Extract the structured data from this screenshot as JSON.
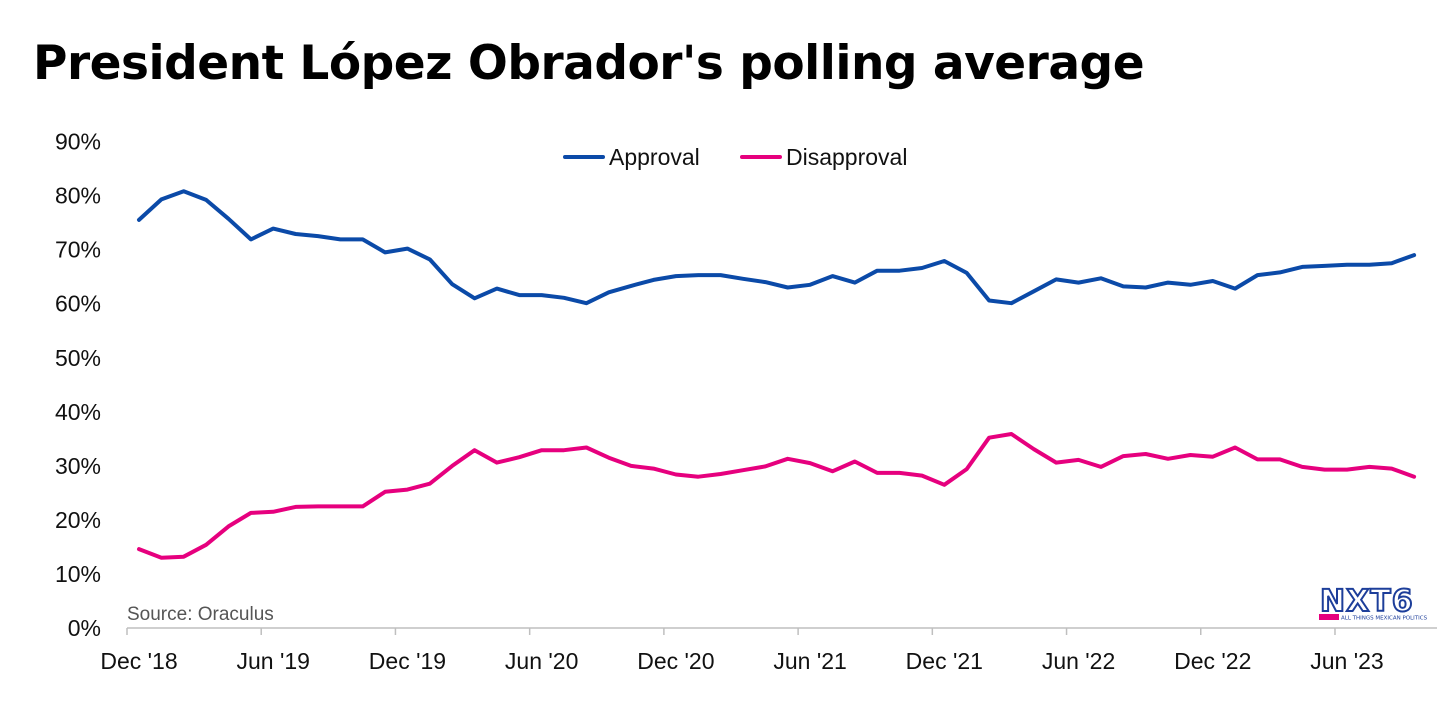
{
  "title": "President López Obrador's polling average",
  "source": "Source: Oraculus",
  "logo": {
    "text": "NXT6",
    "tagline": "ALL THINGS MEXICAN POLITICS",
    "accent": "#e6007e",
    "color": "#1d3e9a"
  },
  "chart_data": {
    "type": "line",
    "title": "President López Obrador's polling average",
    "xlabel": "",
    "ylabel": "",
    "ylim": [
      0,
      90
    ],
    "grid": false,
    "legend_position": "top-center",
    "y_ticks": [
      "0%",
      "10%",
      "20%",
      "30%",
      "40%",
      "50%",
      "60%",
      "70%",
      "80%",
      "90%"
    ],
    "x_ticks": [
      "Dec '18",
      "Jun '19",
      "Dec '19",
      "Jun '20",
      "Dec '20",
      "Jun '21",
      "Dec '21",
      "Jun '22",
      "Dec '22",
      "Jun '23"
    ],
    "x": [
      "Dec '18",
      "Jan '19",
      "Feb '19",
      "Mar '19",
      "Apr '19",
      "May '19",
      "Jun '19",
      "Jul '19",
      "Aug '19",
      "Sep '19",
      "Oct '19",
      "Nov '19",
      "Dec '19",
      "Jan '20",
      "Feb '20",
      "Mar '20",
      "Apr '20",
      "May '20",
      "Jun '20",
      "Jul '20",
      "Aug '20",
      "Sep '20",
      "Oct '20",
      "Nov '20",
      "Dec '20",
      "Jan '21",
      "Feb '21",
      "Mar '21",
      "Apr '21",
      "May '21",
      "Jun '21",
      "Jul '21",
      "Aug '21",
      "Sep '21",
      "Oct '21",
      "Nov '21",
      "Dec '21",
      "Jan '22",
      "Feb '22",
      "Mar '22",
      "Apr '22",
      "May '22",
      "Jun '22",
      "Jul '22",
      "Aug '22",
      "Sep '22",
      "Oct '22",
      "Nov '22",
      "Dec '22",
      "Jan '23",
      "Feb '23",
      "Mar '23",
      "Apr '23",
      "May '23",
      "Jun '23",
      "Jul '23",
      "Aug '23",
      "Sep '23"
    ],
    "series": [
      {
        "name": "Approval",
        "color": "#0b4aa8",
        "values": [
          75.5,
          79.3,
          80.8,
          79.2,
          75.7,
          71.9,
          73.9,
          72.9,
          72.5,
          71.9,
          71.9,
          69.5,
          70.2,
          68.2,
          63.6,
          61.0,
          62.8,
          61.6,
          61.6,
          61.1,
          60.1,
          62.1,
          63.3,
          64.4,
          65.1,
          65.3,
          65.3,
          64.6,
          64.0,
          63.0,
          63.5,
          65.1,
          63.9,
          66.1,
          66.1,
          66.6,
          67.9,
          65.7,
          60.6,
          60.1,
          62.3,
          64.5,
          63.9,
          64.7,
          63.2,
          63.0,
          63.9,
          63.5,
          64.2,
          62.8,
          65.3,
          65.8,
          66.8,
          67.0,
          67.2,
          67.2,
          67.5,
          69.0
        ]
      },
      {
        "name": "Disapproval",
        "color": "#e6007e",
        "values": [
          14.6,
          13.0,
          13.2,
          15.4,
          18.8,
          21.3,
          21.5,
          22.4,
          22.5,
          22.5,
          22.5,
          25.2,
          25.6,
          26.7,
          30.0,
          32.9,
          30.6,
          31.6,
          32.9,
          32.9,
          33.4,
          31.5,
          30.0,
          29.5,
          28.4,
          28.0,
          28.5,
          29.2,
          29.9,
          31.3,
          30.5,
          29.0,
          30.8,
          28.7,
          28.7,
          28.2,
          26.5,
          29.4,
          35.2,
          35.9,
          33.1,
          30.6,
          31.1,
          29.8,
          31.8,
          32.2,
          31.3,
          32.0,
          31.7,
          33.4,
          31.2,
          31.2,
          29.8,
          29.3,
          29.3,
          29.8,
          29.5,
          28.0
        ]
      }
    ]
  }
}
